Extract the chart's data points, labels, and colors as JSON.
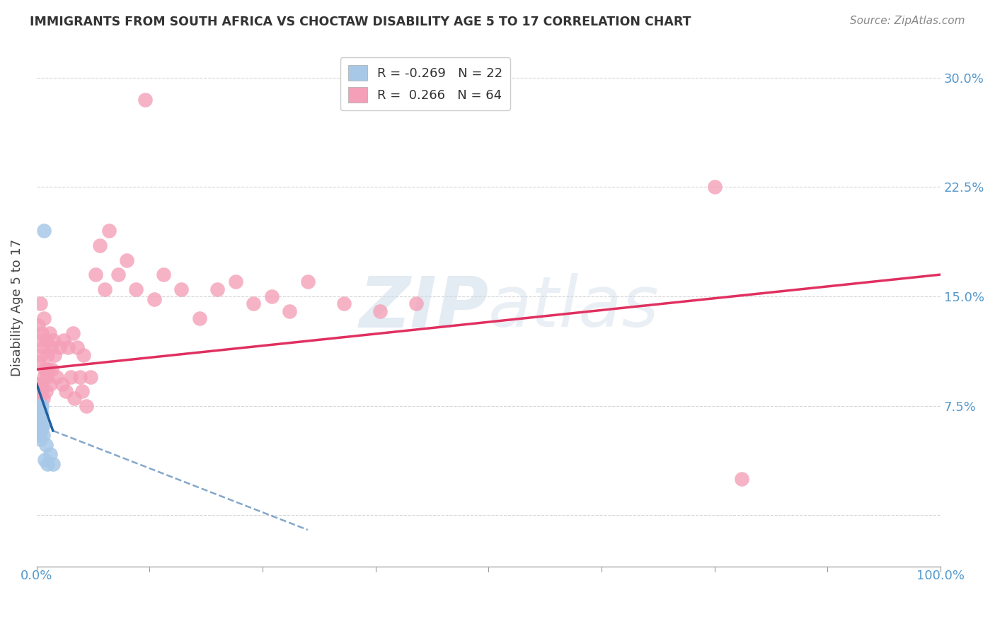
{
  "title": "IMMIGRANTS FROM SOUTH AFRICA VS CHOCTAW DISABILITY AGE 5 TO 17 CORRELATION CHART",
  "source": "Source: ZipAtlas.com",
  "ylabel": "Disability Age 5 to 17",
  "xlim": [
    0.0,
    1.0
  ],
  "ylim": [
    -0.035,
    0.32
  ],
  "blue_R": -0.269,
  "blue_N": 22,
  "pink_R": 0.266,
  "pink_N": 64,
  "blue_color": "#a8c8e8",
  "pink_color": "#f4a0b8",
  "blue_line_color": "#2060a0",
  "pink_line_color": "#e03060",
  "watermark_zip": "ZIP",
  "watermark_atlas": "atlas",
  "blue_points_x": [
    0.001,
    0.001,
    0.002,
    0.002,
    0.003,
    0.003,
    0.004,
    0.004,
    0.005,
    0.005,
    0.005,
    0.006,
    0.006,
    0.006,
    0.007,
    0.007,
    0.008,
    0.009,
    0.01,
    0.012,
    0.015,
    0.018
  ],
  "blue_points_y": [
    0.06,
    0.068,
    0.055,
    0.072,
    0.058,
    0.07,
    0.052,
    0.068,
    0.058,
    0.065,
    0.075,
    0.06,
    0.07,
    0.075,
    0.055,
    0.062,
    0.195,
    0.038,
    0.048,
    0.035,
    0.042,
    0.035
  ],
  "pink_points_x": [
    0.001,
    0.002,
    0.002,
    0.003,
    0.004,
    0.004,
    0.005,
    0.005,
    0.006,
    0.006,
    0.007,
    0.007,
    0.008,
    0.008,
    0.009,
    0.01,
    0.01,
    0.011,
    0.012,
    0.013,
    0.014,
    0.015,
    0.016,
    0.017,
    0.018,
    0.02,
    0.022,
    0.025,
    0.028,
    0.03,
    0.032,
    0.035,
    0.038,
    0.04,
    0.042,
    0.045,
    0.048,
    0.05,
    0.052,
    0.055,
    0.06,
    0.065,
    0.07,
    0.075,
    0.08,
    0.09,
    0.1,
    0.11,
    0.12,
    0.13,
    0.14,
    0.16,
    0.18,
    0.2,
    0.22,
    0.24,
    0.26,
    0.28,
    0.3,
    0.34,
    0.38,
    0.42,
    0.75,
    0.78
  ],
  "pink_points_y": [
    0.09,
    0.105,
    0.13,
    0.08,
    0.12,
    0.145,
    0.085,
    0.11,
    0.09,
    0.125,
    0.08,
    0.115,
    0.095,
    0.135,
    0.1,
    0.085,
    0.12,
    0.095,
    0.11,
    0.1,
    0.125,
    0.09,
    0.115,
    0.1,
    0.12,
    0.11,
    0.095,
    0.115,
    0.09,
    0.12,
    0.085,
    0.115,
    0.095,
    0.125,
    0.08,
    0.115,
    0.095,
    0.085,
    0.11,
    0.075,
    0.095,
    0.165,
    0.185,
    0.155,
    0.195,
    0.165,
    0.175,
    0.155,
    0.285,
    0.148,
    0.165,
    0.155,
    0.135,
    0.155,
    0.16,
    0.145,
    0.15,
    0.14,
    0.16,
    0.145,
    0.14,
    0.145,
    0.225,
    0.025
  ],
  "pink_line_x0": 0.0,
  "pink_line_y0": 0.1,
  "pink_line_x1": 1.0,
  "pink_line_y1": 0.165,
  "blue_line_solid_x0": 0.0,
  "blue_line_solid_y0": 0.09,
  "blue_line_solid_x1": 0.018,
  "blue_line_solid_y1": 0.058,
  "blue_line_dash_x1": 0.3,
  "blue_line_dash_y1": -0.01
}
